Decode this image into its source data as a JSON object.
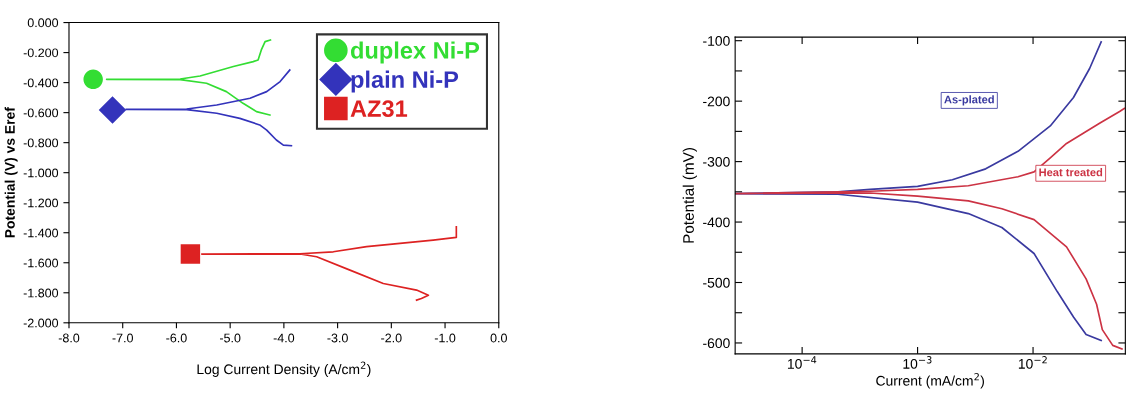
{
  "chart_data": [
    {
      "type": "line",
      "xlabel": "Log Current Density (A/cm$^{2}$)",
      "ylabel": "Potential (V) vs Eref",
      "xlim": [
        -8,
        0
      ],
      "xticks": [
        {
          "value": -8,
          "label": "-8.0"
        },
        {
          "value": -7,
          "label": "-7.0"
        },
        {
          "value": -6,
          "label": "-6.0"
        },
        {
          "value": -5,
          "label": "-5.0"
        },
        {
          "value": -4,
          "label": "-4.0"
        },
        {
          "value": -3,
          "label": "-3.0"
        },
        {
          "value": -2,
          "label": "-2.0"
        },
        {
          "value": -1,
          "label": "-1.0"
        },
        {
          "value": 0,
          "label": "0.0"
        }
      ],
      "ylim": [
        -2,
        0
      ],
      "yticks": [
        {
          "value": 0,
          "label": "0.000"
        },
        {
          "value": -0.2,
          "label": "-0.200"
        },
        {
          "value": -0.4,
          "label": "-0.400"
        },
        {
          "value": -0.6,
          "label": "-0.600"
        },
        {
          "value": -0.8,
          "label": "-0.800"
        },
        {
          "value": -1.0,
          "label": "-1.000"
        },
        {
          "value": -1.2,
          "label": "-1.200"
        },
        {
          "value": -1.4,
          "label": "-1.400"
        },
        {
          "value": -1.6,
          "label": "-1.600"
        },
        {
          "value": -1.8,
          "label": "-1.800"
        },
        {
          "value": -2.0,
          "label": "-2.000"
        }
      ],
      "grid": false,
      "legend": "top right",
      "series": [
        {
          "name": "duplex Ni-P",
          "type": "scatter",
          "color": "#33dd33",
          "marker": "circle",
          "x": [
            -7.55
          ],
          "values": [
            -0.378
          ]
        },
        {
          "name": "plain Ni-P",
          "type": "scatter",
          "color": "#3333bb",
          "marker": "diamond",
          "x": [
            -7.19
          ],
          "values": [
            -0.582
          ]
        },
        {
          "name": "AZ31",
          "type": "scatter",
          "color": "#dd2222",
          "marker": "square",
          "x": [
            -5.74
          ],
          "values": [
            -1.542
          ]
        },
        {
          "color": "#33dd33",
          "x": [
            -4.26,
            -4.51,
            -4.76,
            -5.07,
            -5.44,
            -5.93,
            -7.3,
            -5.93,
            -5.56,
            -4.94,
            -4.57,
            -4.48,
            -4.42,
            -4.35,
            -4.25
          ],
          "values": [
            -0.616,
            -0.593,
            -0.538,
            -0.46,
            -0.404,
            -0.38,
            -0.378,
            -0.376,
            -0.356,
            -0.293,
            -0.26,
            -0.249,
            -0.182,
            -0.127,
            -0.116
          ]
        },
        {
          "color": "#3333bb",
          "x": [
            -3.86,
            -4.01,
            -4.14,
            -4.32,
            -4.45,
            -4.82,
            -5.25,
            -5.81,
            -6.94,
            -5.81,
            -5.25,
            -4.63,
            -4.32,
            -4.07,
            -3.89
          ],
          "values": [
            -0.82,
            -0.816,
            -0.782,
            -0.716,
            -0.682,
            -0.638,
            -0.604,
            -0.58,
            -0.578,
            -0.576,
            -0.549,
            -0.504,
            -0.46,
            -0.393,
            -0.316
          ]
        },
        {
          "color": "#dd2222",
          "x": [
            -1.53,
            -1.44,
            -1.31,
            -1.53,
            -2.15,
            -2.77,
            -3.39,
            -3.7,
            -5.53,
            -3.7,
            -3.08,
            -2.46,
            -1.84,
            -1.22,
            -0.79,
            -0.79
          ],
          "values": [
            -1.849,
            -1.838,
            -1.816,
            -1.782,
            -1.738,
            -1.649,
            -1.56,
            -1.542,
            -1.542,
            -1.54,
            -1.527,
            -1.493,
            -1.471,
            -1.449,
            -1.431,
            -1.36
          ]
        }
      ]
    },
    {
      "type": "line",
      "xlabel": "Current (mA/cm$^{2}$)",
      "ylabel": "Potential (mV)",
      "log": "x",
      "xlim": [
        2.63e-05,
        0.063
      ],
      "xticks": [
        {
          "value": 0.0001,
          "label": "10$^{−4}$"
        },
        {
          "value": 0.001,
          "label": "10$^{−3}$"
        },
        {
          "value": 0.01,
          "label": "10$^{−2}$"
        }
      ],
      "ylim": [
        -618,
        -94
      ],
      "yticks": [
        -100,
        {
          "value": -150,
          "label": null
        },
        -200,
        {
          "value": -250,
          "label": null
        },
        -300,
        {
          "value": -350,
          "label": null
        },
        -400,
        {
          "value": -450,
          "label": null
        },
        -500,
        {
          "value": -550,
          "label": null
        },
        -600
      ],
      "grid": false,
      "legend": false,
      "series": [
        {
          "name": "As-plated",
          "color": "#3a3aa0",
          "x": [
            0.0389,
            0.0288,
            0.0224,
            0.0162,
            0.0102,
            0.00537,
            0.00275,
            0.001,
            0.000204,
            2.63e-05,
            0.000204,
            0.000389,
            0.001,
            0.002,
            0.00389,
            0.00741,
            0.0141,
            0.0224,
            0.0309,
            0.0389
          ],
          "values": [
            -596,
            -586,
            -557,
            -515,
            -452,
            -409,
            -386,
            -367,
            -354,
            -353,
            -350,
            -346,
            -341,
            -330,
            -312,
            -283,
            -241,
            -194,
            -146,
            -102
          ]
        },
        {
          "name": "Heat treated",
          "color": "#cc3344",
          "x": [
            0.0589,
            0.049,
            0.0398,
            0.0355,
            0.0288,
            0.0195,
            0.0102,
            0.00537,
            0.00275,
            0.001,
            0.000389,
            2.63e-05,
            0.000389,
            0.001,
            0.00275,
            0.00741,
            0.0102,
            0.0141,
            0.0195,
            0.038,
            0.0562,
            0.0617
          ],
          "values": [
            -610,
            -604,
            -578,
            -536,
            -494,
            -441,
            -396,
            -378,
            -365,
            -357,
            -352,
            -353,
            -349,
            -346,
            -340,
            -325,
            -317,
            -294,
            -270,
            -236,
            -217,
            -212
          ]
        }
      ]
    }
  ]
}
